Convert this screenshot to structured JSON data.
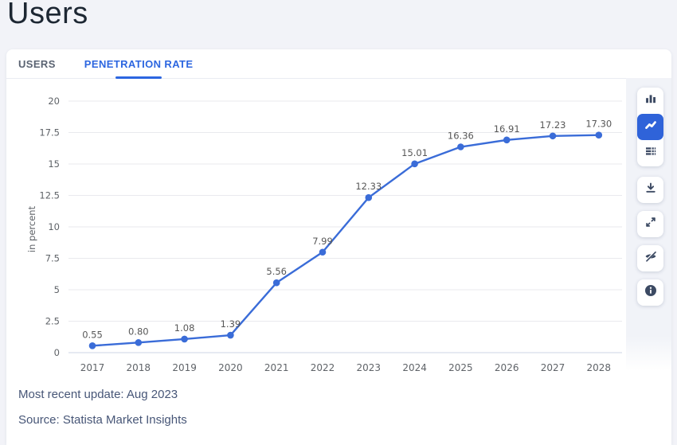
{
  "page": {
    "title": "Users",
    "background_color": "#f2f3f8",
    "accent_color": "#2c66e0"
  },
  "tabs": [
    {
      "label": "USERS",
      "active": false
    },
    {
      "label": "PENETRATION RATE",
      "active": true
    }
  ],
  "toolbar": {
    "chart_type_group": [
      {
        "icon": "bar-chart-icon",
        "active": false
      },
      {
        "icon": "line-chart-icon",
        "active": true
      },
      {
        "icon": "table-icon",
        "active": false
      }
    ],
    "action_buttons": [
      {
        "icon": "download-icon"
      },
      {
        "icon": "expand-icon"
      },
      {
        "icon": "eye-off-icon"
      },
      {
        "icon": "info-icon"
      }
    ],
    "icon_color": "#3c4a63",
    "active_bg_color": "#2f63d9"
  },
  "chart_data": {
    "type": "line",
    "x": [
      "2017",
      "2018",
      "2019",
      "2020",
      "2021",
      "2022",
      "2023",
      "2024",
      "2025",
      "2026",
      "2027",
      "2028"
    ],
    "series": [
      {
        "name": "Penetration Rate",
        "values": [
          0.55,
          0.8,
          1.08,
          1.39,
          5.56,
          7.99,
          12.33,
          15.01,
          16.36,
          16.91,
          17.23,
          17.3
        ]
      }
    ],
    "value_labels": [
      "0.55",
      "0.80",
      "1.08",
      "1.39",
      "5.56",
      "7.99",
      "12.33",
      "15.01",
      "16.36",
      "16.91",
      "17.23",
      "17.30"
    ],
    "title": "",
    "xlabel": "",
    "ylabel": "in percent",
    "ylim": [
      0,
      20
    ],
    "yticks": [
      0,
      2.5,
      5,
      7.5,
      10,
      12.5,
      15,
      17.5,
      20
    ],
    "ytick_labels": [
      "0",
      "2.5",
      "5",
      "7.5",
      "10",
      "12.5",
      "15",
      "17.5",
      "20"
    ],
    "grid": true,
    "legend": false,
    "line_color": "#3a6cd8",
    "marker_color": "#3a6cd8",
    "gridline_color": "#e9eaee",
    "axis_line_color": "#ccd6e6",
    "tick_label_color": "#5f6368",
    "value_label_color": "#575757"
  },
  "footer": {
    "updated": "Most recent update: Aug 2023",
    "source": "Source: Statista Market Insights"
  }
}
